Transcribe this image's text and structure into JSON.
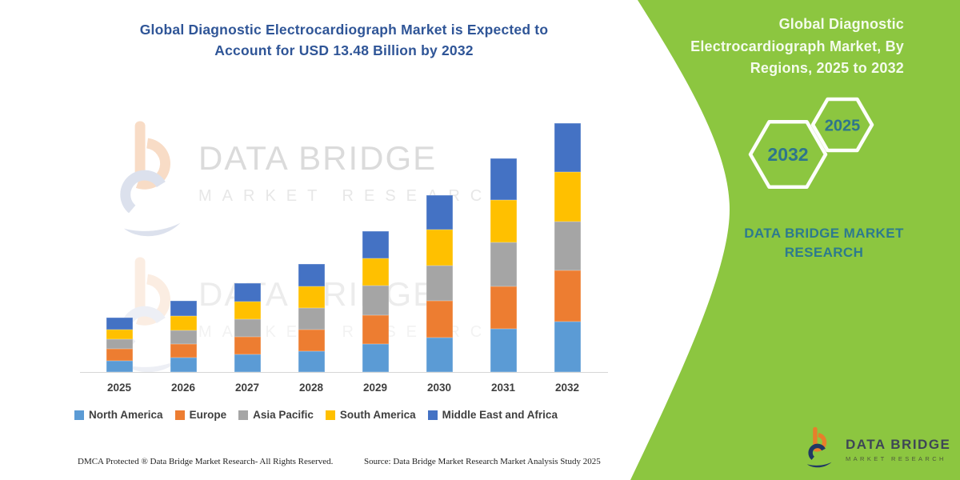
{
  "left_panel": {
    "title_lines": [
      "Global Diagnostic Electrocardiograph Market is Expected to",
      "Account for USD 13.48 Billion by 2032"
    ],
    "watermark": {
      "brand": "DATA BRIDGE",
      "sub": "MARKET RESEARCH"
    },
    "footer": {
      "left": "DMCA Protected ® Data Bridge Market Research-  All Rights Reserved.",
      "right": "Source: Data Bridge Market Research  Market Analysis Study 2025"
    }
  },
  "right_panel": {
    "title_lines": [
      "Global Diagnostic",
      "Electrocardiograph Market, By",
      "Regions, 2025 to 2032"
    ],
    "hexagons": [
      {
        "label": "2032"
      },
      {
        "label": "2025"
      }
    ],
    "brand_lines": [
      "DATA BRIDGE MARKET",
      "RESEARCH"
    ],
    "logo": {
      "brand": "DATA BRIDGE",
      "sub": "MARKET RESEARCH"
    },
    "bg_color": "#8CC640",
    "accent_text_color": "#2D7A8E"
  },
  "chart_data": {
    "type": "bar",
    "stacked": true,
    "title": "Global Diagnostic Electrocardiograph Market is Expected to Account for USD 13.48 Billion by 2032",
    "unit": "USD Billion",
    "categories": [
      "2025",
      "2026",
      "2027",
      "2028",
      "2029",
      "2030",
      "2031",
      "2032"
    ],
    "series": [
      {
        "name": "North America",
        "color": "#5B9BD5",
        "values": [
          0.62,
          0.77,
          0.94,
          1.15,
          1.53,
          1.86,
          2.35,
          2.73
        ]
      },
      {
        "name": "Europe",
        "color": "#ED7D31",
        "values": [
          0.65,
          0.75,
          0.95,
          1.13,
          1.57,
          1.99,
          2.3,
          2.79
        ]
      },
      {
        "name": "Asia Pacific",
        "color": "#A5A5A5",
        "values": [
          0.51,
          0.75,
          0.99,
          1.19,
          1.57,
          1.93,
          2.37,
          2.62
        ]
      },
      {
        "name": "South America",
        "color": "#FFC000",
        "values": [
          0.51,
          0.77,
          0.94,
          1.16,
          1.48,
          1.92,
          2.28,
          2.69
        ]
      },
      {
        "name": "Middle East and Africa",
        "color": "#4472C4",
        "values": [
          0.65,
          0.8,
          0.98,
          1.23,
          1.48,
          1.89,
          2.28,
          2.65
        ]
      }
    ],
    "totals": [
      2.94,
      3.84,
      4.8,
      5.86,
      7.63,
      9.59,
      11.58,
      13.48
    ],
    "ylim": [
      0,
      13.48
    ],
    "grid": false,
    "y_axis_visible": false,
    "legend_position": "bottom"
  }
}
